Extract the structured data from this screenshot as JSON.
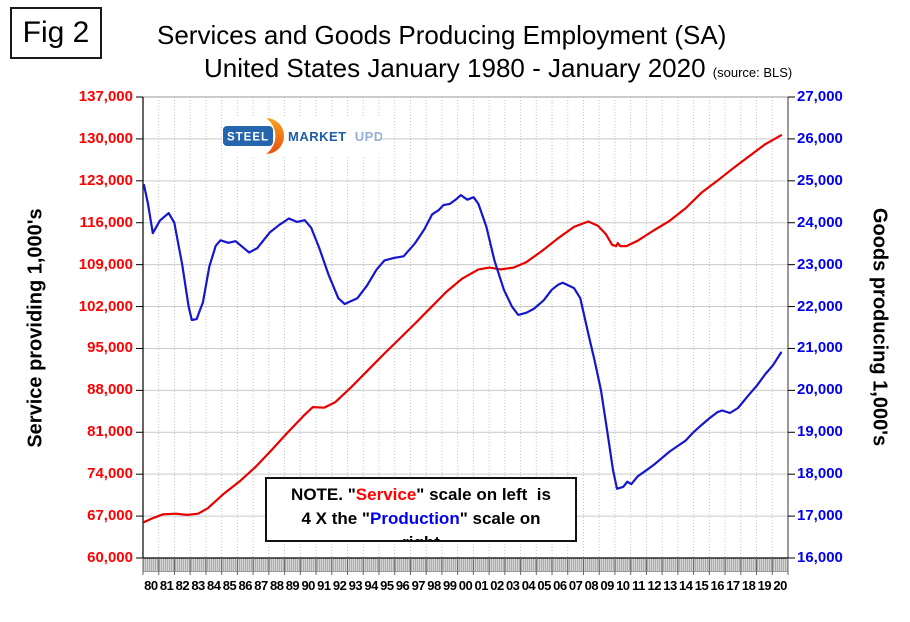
{
  "fig_label": "Fig 2",
  "title": {
    "line1": "Services and Goods Producing Employment (SA)",
    "line2": "United States January 1980 - January 2020",
    "source": "(source: BLS)"
  },
  "logo": {
    "steel": "STEEL",
    "market": "MARKET",
    "update": "UPDATE"
  },
  "note": {
    "lines": [
      [
        {
          "t": "NOTE. \"",
          "c": "#000000"
        },
        {
          "t": "Service",
          "c": "#FF0000"
        },
        {
          "t": "\" scale on left  is",
          "c": "#000000"
        }
      ],
      [
        {
          "t": "4 X the \"",
          "c": "#000000"
        },
        {
          "t": "Production",
          "c": "#0000EE"
        },
        {
          "t": "\" scale on",
          "c": "#000000"
        }
      ],
      [
        {
          "t": "right",
          "c": "#000000"
        }
      ]
    ]
  },
  "colors": {
    "service_line": "#E80000",
    "goods_line": "#1616CC",
    "service_label": "#FF0000",
    "goods_label": "#0000EE",
    "grid": "#C9C9C9",
    "axis": "#000000",
    "logo_orange_top": "#F9A11B",
    "logo_orange_bottom": "#E8500E",
    "logo_blue": "#2565AE",
    "logo_market": "#1F5CA9",
    "logo_update": "#94B0D2"
  },
  "chart_data": {
    "type": "line",
    "title": "Services and Goods Producing Employment (SA), United States January 1980 - January 2020",
    "source": "BLS",
    "grid": true,
    "x_axis": {
      "unit": "year",
      "start": 1980,
      "end": 2020,
      "tick_labels": [
        "80",
        "81",
        "82",
        "83",
        "84",
        "85",
        "86",
        "87",
        "88",
        "89",
        "90",
        "91",
        "92",
        "93",
        "94",
        "95",
        "96",
        "97",
        "98",
        "99",
        "00",
        "01",
        "02",
        "03",
        "04",
        "05",
        "06",
        "07",
        "08",
        "09",
        "10",
        "11",
        "12",
        "13",
        "14",
        "15",
        "16",
        "17",
        "18",
        "19",
        "20"
      ]
    },
    "y_left": {
      "label": "Service providing 1,000's",
      "min": 60000,
      "max": 137000,
      "step": 7000,
      "tick_labels": [
        "137,000",
        "130,000",
        "123,000",
        "116,000",
        "109,000",
        "102,000",
        "95,000",
        "88,000",
        "81,000",
        "74,000",
        "67,000",
        "60,000"
      ]
    },
    "y_right": {
      "label": "Goods producing 1,000's",
      "min": 16000,
      "max": 27000,
      "step": 1000,
      "tick_labels": [
        "27,000",
        "26,000",
        "25,000",
        "24,000",
        "23,000",
        "22,000",
        "21,000",
        "20,000",
        "19,000",
        "18,000",
        "17,000",
        "16,000"
      ]
    },
    "series": [
      {
        "id": "service-providing",
        "name": "Service providing",
        "axis": "left",
        "color": "#E80000",
        "points": [
          [
            1980.0,
            66000
          ],
          [
            1980.5,
            66600
          ],
          [
            1981.2,
            67300
          ],
          [
            1982.0,
            67400
          ],
          [
            1982.7,
            67200
          ],
          [
            1983.4,
            67400
          ],
          [
            1984.0,
            68300
          ],
          [
            1985.0,
            70700
          ],
          [
            1986.0,
            72800
          ],
          [
            1987.0,
            75200
          ],
          [
            1988.0,
            78000
          ],
          [
            1989.0,
            80900
          ],
          [
            1990.0,
            83700
          ],
          [
            1990.6,
            85200
          ],
          [
            1991.3,
            85100
          ],
          [
            1992.0,
            86000
          ],
          [
            1993.0,
            88500
          ],
          [
            1994.0,
            91200
          ],
          [
            1995.0,
            93900
          ],
          [
            1996.0,
            96500
          ],
          [
            1997.0,
            99100
          ],
          [
            1998.0,
            101800
          ],
          [
            1999.0,
            104500
          ],
          [
            2000.0,
            106700
          ],
          [
            2001.0,
            108200
          ],
          [
            2001.7,
            108500
          ],
          [
            2002.4,
            108200
          ],
          [
            2003.2,
            108500
          ],
          [
            2004.0,
            109400
          ],
          [
            2005.0,
            111300
          ],
          [
            2006.0,
            113400
          ],
          [
            2007.0,
            115300
          ],
          [
            2007.9,
            116200
          ],
          [
            2008.5,
            115500
          ],
          [
            2009.0,
            114100
          ],
          [
            2009.4,
            112300
          ],
          [
            2009.65,
            112100
          ],
          [
            2009.75,
            112600
          ],
          [
            2009.9,
            112100
          ],
          [
            2010.3,
            112100
          ],
          [
            2011.0,
            113000
          ],
          [
            2012.0,
            114700
          ],
          [
            2013.0,
            116300
          ],
          [
            2014.0,
            118400
          ],
          [
            2015.0,
            121000
          ],
          [
            2016.0,
            123000
          ],
          [
            2017.0,
            125100
          ],
          [
            2018.0,
            127100
          ],
          [
            2019.0,
            129100
          ],
          [
            2020.0,
            130600
          ]
        ]
      },
      {
        "id": "goods-producing",
        "name": "Goods producing",
        "axis": "right",
        "color": "#1616CC",
        "points": [
          [
            1980.0,
            24900
          ],
          [
            1980.25,
            24450
          ],
          [
            1980.55,
            23750
          ],
          [
            1981.0,
            24050
          ],
          [
            1981.55,
            24230
          ],
          [
            1981.9,
            24000
          ],
          [
            1982.4,
            23000
          ],
          [
            1982.8,
            22000
          ],
          [
            1983.0,
            21680
          ],
          [
            1983.3,
            21700
          ],
          [
            1983.7,
            22100
          ],
          [
            1984.1,
            22950
          ],
          [
            1984.5,
            23450
          ],
          [
            1984.8,
            23580
          ],
          [
            1985.3,
            23520
          ],
          [
            1985.75,
            23560
          ],
          [
            1986.1,
            23450
          ],
          [
            1986.6,
            23290
          ],
          [
            1987.1,
            23390
          ],
          [
            1987.9,
            23770
          ],
          [
            1988.5,
            23950
          ],
          [
            1989.1,
            24100
          ],
          [
            1989.6,
            24020
          ],
          [
            1990.1,
            24060
          ],
          [
            1990.5,
            23880
          ],
          [
            1991.0,
            23400
          ],
          [
            1991.6,
            22750
          ],
          [
            1992.2,
            22200
          ],
          [
            1992.6,
            22060
          ],
          [
            1993.0,
            22130
          ],
          [
            1993.4,
            22200
          ],
          [
            1994.0,
            22500
          ],
          [
            1994.6,
            22880
          ],
          [
            1995.1,
            23100
          ],
          [
            1995.7,
            23160
          ],
          [
            1996.3,
            23200
          ],
          [
            1997.0,
            23500
          ],
          [
            1997.6,
            23840
          ],
          [
            1998.1,
            24200
          ],
          [
            1998.5,
            24300
          ],
          [
            1998.8,
            24420
          ],
          [
            1999.2,
            24450
          ],
          [
            1999.6,
            24560
          ],
          [
            1999.9,
            24660
          ],
          [
            2000.3,
            24550
          ],
          [
            2000.7,
            24610
          ],
          [
            2001.0,
            24450
          ],
          [
            2001.5,
            23900
          ],
          [
            2002.0,
            23100
          ],
          [
            2002.6,
            22400
          ],
          [
            2003.1,
            22000
          ],
          [
            2003.5,
            21800
          ],
          [
            2004.0,
            21850
          ],
          [
            2004.5,
            21950
          ],
          [
            2005.1,
            22150
          ],
          [
            2005.6,
            22400
          ],
          [
            2006.0,
            22520
          ],
          [
            2006.3,
            22570
          ],
          [
            2007.0,
            22440
          ],
          [
            2007.4,
            22200
          ],
          [
            2007.9,
            21350
          ],
          [
            2008.3,
            20700
          ],
          [
            2008.7,
            20000
          ],
          [
            2009.1,
            19000
          ],
          [
            2009.45,
            18100
          ],
          [
            2009.7,
            17650
          ],
          [
            2010.1,
            17700
          ],
          [
            2010.35,
            17820
          ],
          [
            2010.6,
            17760
          ],
          [
            2011.0,
            17950
          ],
          [
            2011.5,
            18080
          ],
          [
            2012.0,
            18220
          ],
          [
            2012.5,
            18380
          ],
          [
            2013.0,
            18540
          ],
          [
            2013.5,
            18670
          ],
          [
            2014.0,
            18800
          ],
          [
            2014.5,
            19000
          ],
          [
            2015.0,
            19170
          ],
          [
            2015.5,
            19330
          ],
          [
            2016.0,
            19480
          ],
          [
            2016.3,
            19520
          ],
          [
            2016.8,
            19460
          ],
          [
            2017.3,
            19580
          ],
          [
            2018.0,
            19900
          ],
          [
            2018.5,
            20120
          ],
          [
            2019.0,
            20380
          ],
          [
            2019.5,
            20600
          ],
          [
            2020.0,
            20900
          ]
        ]
      }
    ]
  }
}
